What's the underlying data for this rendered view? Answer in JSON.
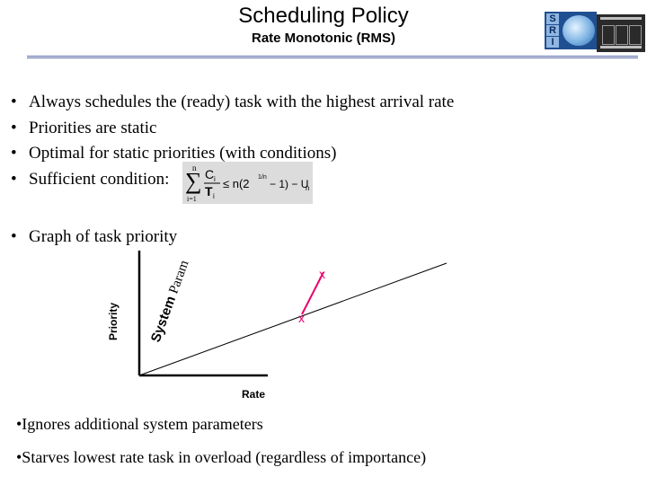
{
  "header": {
    "title": "Scheduling Policy",
    "subtitle": "Rate Monotonic (RMS)",
    "logo_letters": [
      "S",
      "R",
      "I"
    ]
  },
  "bullets": [
    "Always schedules the (ready) task with the highest arrival rate",
    "Priorities are static",
    "Optimal for static priorities (with conditions)",
    "Sufficient condition:"
  ],
  "formula": {
    "sum_top": "n",
    "sum_bottom": "i=1",
    "numerator": "C",
    "numerator_sub": "i",
    "denominator": "T",
    "denominator_sub": "i",
    "rhs": "≤ n(2",
    "exponent": "1/n",
    "rhs_tail": "− 1) − U",
    "rhs_sub": "n"
  },
  "graph_bullet": "Graph of task priority",
  "graph": {
    "y_label": "Priority",
    "x_label": "Rate",
    "diag_label_a": "System ",
    "diag_label_b": "Param",
    "marker": "x",
    "colors": {
      "axis": "#000000",
      "marker": "#e8006e",
      "logo_blue": "#1f4f91"
    }
  },
  "notes": [
    "•Ignores additional system parameters",
    "•Starves lowest rate task in overload (regardless of importance)"
  ]
}
